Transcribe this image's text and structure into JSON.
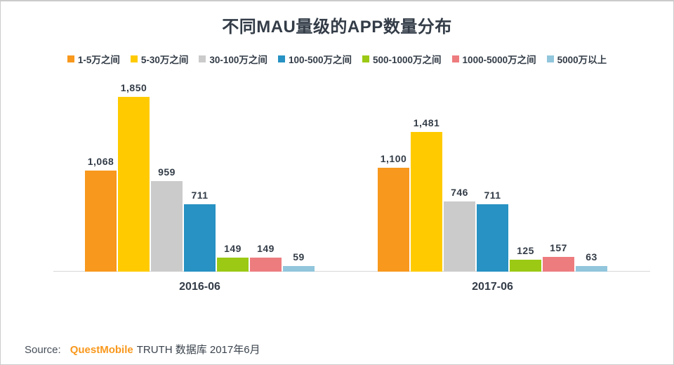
{
  "title": "不同MAU量级的APP数量分布",
  "footer": {
    "label": "Source:",
    "brand": "QuestMobile",
    "rest": "TRUTH 数据库 2017年6月"
  },
  "colors": {
    "text_dark": "#333c47",
    "axis_line": "#d8d8d8",
    "brand_orange": "#f8981d",
    "frame_border": "#cbcbcb"
  },
  "chart_data": {
    "type": "bar",
    "title": "不同MAU量级的APP数量分布",
    "categories": [
      "2016-06",
      "2017-06"
    ],
    "series": [
      {
        "name": "1-5万之间",
        "color": "#f8981d",
        "values": [
          1068,
          1100
        ],
        "labels": [
          "1,068",
          "1,100"
        ]
      },
      {
        "name": "5-30万之间",
        "color": "#ffcb00",
        "values": [
          1850,
          1481
        ],
        "labels": [
          "1,850",
          "1,481"
        ]
      },
      {
        "name": "30-100万之间",
        "color": "#cbcbcb",
        "values": [
          959,
          746
        ],
        "labels": [
          "959",
          "746"
        ]
      },
      {
        "name": "100-500万之间",
        "color": "#2792c3",
        "values": [
          711,
          711
        ],
        "labels": [
          "711",
          "711"
        ]
      },
      {
        "name": "500-1000万之间",
        "color": "#9bc914",
        "values": [
          149,
          125
        ],
        "labels": [
          "149",
          "125"
        ]
      },
      {
        "name": "1000-5000万之间",
        "color": "#ed7c7f",
        "values": [
          149,
          157
        ],
        "labels": [
          "149",
          "157"
        ]
      },
      {
        "name": "5000万以上",
        "color": "#91c6dc",
        "values": [
          59,
          63
        ],
        "labels": [
          "59",
          "63"
        ]
      }
    ],
    "ylim": [
      0,
      1850
    ],
    "grid": false,
    "legend_position": "top",
    "value_labels_shown": true,
    "yaxis_shown": false
  }
}
